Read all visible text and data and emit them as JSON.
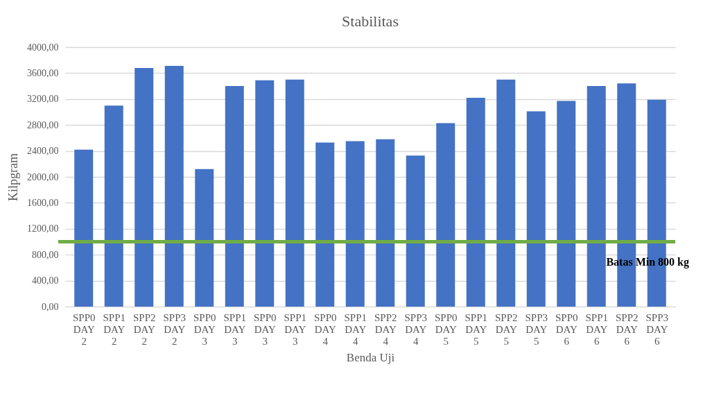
{
  "chart_data": {
    "type": "bar",
    "title": "Stabilitas",
    "xlabel": "Benda Uji",
    "ylabel": "Kilpgram",
    "categories": [
      "SPP0 DAY 2",
      "SPP1 DAY 2",
      "SPP2 DAY 2",
      "SPP3 DAY 2",
      "SPP0 DAY 3",
      "SPP1 DAY 3",
      "SPP0 DAY 3",
      "SPP1 DAY 3",
      "SPP0 DAY 4",
      "SPP1 DAY 4",
      "SPP2 DAY 4",
      "SPP3 DAY 4",
      "SPP0 DAY 5",
      "SPP1 DAY 5",
      "SPP2 DAY 5",
      "SPP3 DAY 5",
      "SPP0 DAY 6",
      "SPP1 DAY 6",
      "SPP2 DAY 6",
      "SPP3 DAY 6"
    ],
    "values": [
      2420,
      3100,
      3680,
      3710,
      2120,
      3400,
      3490,
      3500,
      2530,
      2550,
      2580,
      2330,
      2830,
      3220,
      3500,
      3010,
      3170,
      3400,
      3440,
      3190
    ],
    "color": "#4472c4",
    "ylim": [
      0,
      4000
    ],
    "yticks": [
      {
        "value": 0,
        "label": "0,00"
      },
      {
        "value": 400,
        "label": "400,00"
      },
      {
        "value": 800,
        "label": "800,00"
      },
      {
        "value": 1200,
        "label": "1200,00"
      },
      {
        "value": 1600,
        "label": "1600,00"
      },
      {
        "value": 2000,
        "label": "2000,00"
      },
      {
        "value": 2400,
        "label": "2400,00"
      },
      {
        "value": 2800,
        "label": "2800,00"
      },
      {
        "value": 3200,
        "label": "3200,00"
      },
      {
        "value": 3600,
        "label": "3600,00"
      },
      {
        "value": 4000,
        "label": "4000,00"
      }
    ],
    "grid": "y",
    "ref_lines": [
      {
        "axis": "y",
        "value": 1000,
        "label": "Batas Min 800 kg",
        "color": "#70ad47"
      }
    ]
  }
}
